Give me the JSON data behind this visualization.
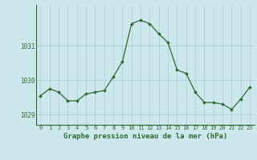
{
  "x": [
    0,
    1,
    2,
    3,
    4,
    5,
    6,
    7,
    8,
    9,
    10,
    11,
    12,
    13,
    14,
    15,
    16,
    17,
    18,
    19,
    20,
    21,
    22,
    23
  ],
  "y": [
    1029.55,
    1029.75,
    1029.65,
    1029.4,
    1029.4,
    1029.6,
    1029.65,
    1029.7,
    1030.1,
    1030.55,
    1031.65,
    1031.75,
    1031.65,
    1031.35,
    1031.1,
    1030.3,
    1030.2,
    1029.65,
    1029.35,
    1029.35,
    1029.3,
    1029.15,
    1029.45,
    1029.8
  ],
  "line_color": "#2d6a2d",
  "marker": "D",
  "marker_size": 2.0,
  "bg_color": "#cce8ec",
  "grid_color": "#aaccd4",
  "ylabel_ticks": [
    1029,
    1030,
    1031
  ],
  "xlabel_ticks": [
    0,
    1,
    2,
    3,
    4,
    5,
    6,
    7,
    8,
    9,
    10,
    11,
    12,
    13,
    14,
    15,
    16,
    17,
    18,
    19,
    20,
    21,
    22,
    23
  ],
  "xlabel_labels": [
    "0",
    "1",
    "2",
    "3",
    "4",
    "5",
    "6",
    "7",
    "8",
    "9",
    "10",
    "11",
    "12",
    "13",
    "14",
    "15",
    "16",
    "17",
    "18",
    "19",
    "20",
    "21",
    "22",
    "23"
  ],
  "xlabel": "Graphe pression niveau de la mer (hPa)",
  "ylim": [
    1028.7,
    1032.2
  ],
  "xlim": [
    -0.5,
    23.5
  ],
  "tick_color": "#2d6a2d",
  "label_color": "#2d6a2d",
  "xlabel_fontsize": 6.5,
  "tick_fontsize": 5.5,
  "linewidth": 0.9
}
